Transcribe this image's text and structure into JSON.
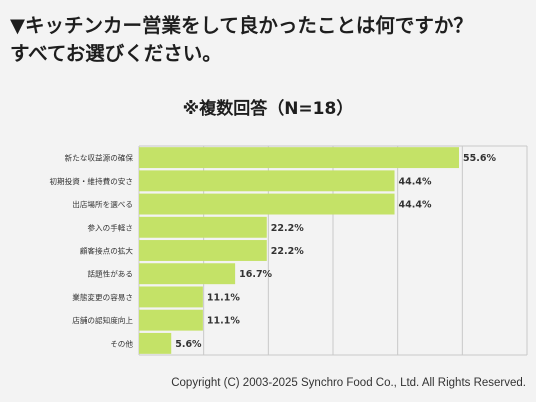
{
  "page": {
    "title_line1": "▼キッチンカー営業をして良かったことは何ですか？",
    "title_line2": "すべてお選びください。",
    "subtitle": "※複数回答（N=18）",
    "footer": "Copyright (C) 2003-2025  Synchro Food Co., Ltd. All Rights Reserved."
  },
  "colors": {
    "bar": "#c4e267",
    "grid": "#c8c8c8",
    "background": "#f3f3f3"
  },
  "chart_data": {
    "type": "bar",
    "orientation": "horizontal",
    "title": "",
    "xlabel": "",
    "ylabel": "",
    "xlim": [
      0,
      60
    ],
    "grid": true,
    "categories": [
      "新たな収益源の確保",
      "初期投資・維持費の安さ",
      "出店場所を選べる",
      "参入の手軽さ",
      "顧客接点の拡大",
      "話題性がある",
      "業態変更の容易さ",
      "店舗の認知度向上",
      "その他"
    ],
    "values": [
      55.6,
      44.4,
      44.4,
      22.2,
      22.2,
      16.7,
      11.1,
      11.1,
      5.6
    ],
    "value_labels": [
      "55.6%",
      "44.4%",
      "44.4%",
      "22.2%",
      "22.2%",
      "16.7%",
      "11.1%",
      "11.1%",
      "5.6%"
    ]
  }
}
